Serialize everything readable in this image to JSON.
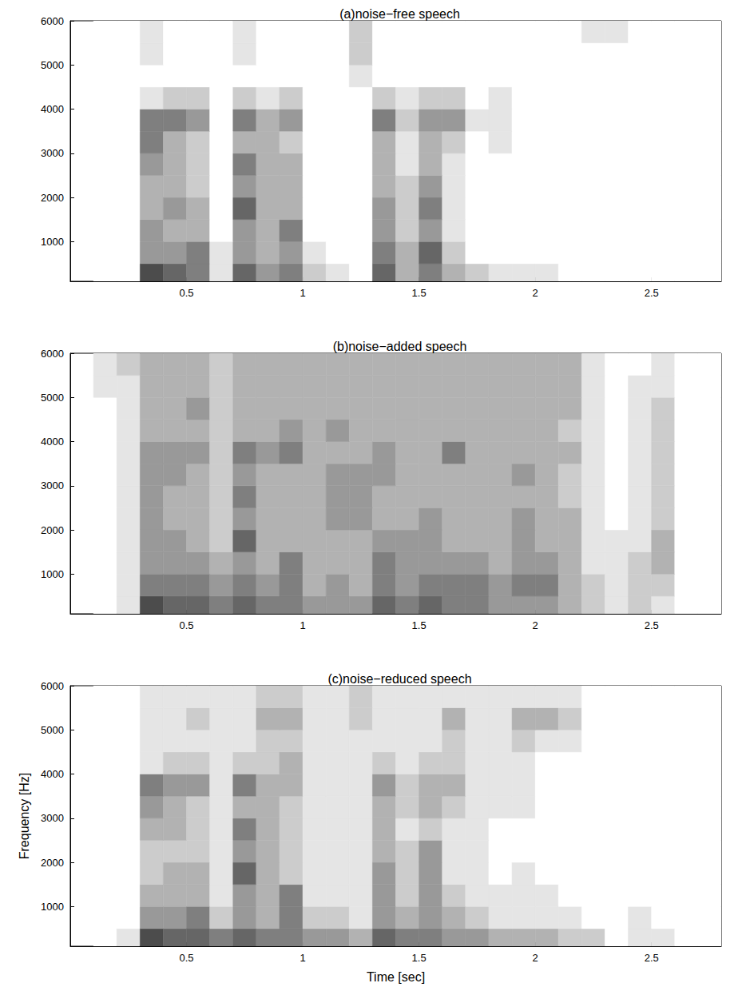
{
  "chart_data": [
    {
      "type": "heatmap",
      "title": "(a)noise−free speech",
      "xlim": [
        0,
        2.8
      ],
      "xticks": [
        0.5,
        1,
        1.5,
        2,
        2.5
      ],
      "ylim": [
        100,
        6000
      ],
      "yticks": [
        1000,
        2000,
        3000,
        4000,
        5000,
        6000
      ],
      "time_bins": [
        0.1,
        0.2,
        0.3,
        0.4,
        0.5,
        0.6,
        0.7,
        0.8,
        0.9,
        1.0,
        1.1,
        1.2,
        1.3,
        1.4,
        1.5,
        1.6,
        1.7,
        1.8,
        1.9,
        2.0,
        2.1,
        2.2,
        2.3,
        2.4,
        2.5,
        2.6,
        2.7,
        2.8
      ],
      "freq_bins": [
        100,
        500,
        1000,
        1500,
        2000,
        2500,
        3000,
        3500,
        4000,
        4500,
        5000,
        5500,
        6000
      ],
      "clim": [
        0,
        9
      ],
      "cells": [
        [
          0,
          0,
          7,
          6,
          5,
          1,
          6,
          4,
          5,
          2,
          1,
          0,
          6,
          3,
          5,
          3,
          2,
          1,
          1,
          1,
          0,
          0,
          0,
          0,
          0,
          0,
          0
        ],
        [
          0,
          0,
          4,
          4,
          5,
          1,
          4,
          3,
          4,
          1,
          0,
          0,
          5,
          3,
          6,
          2,
          0,
          0,
          0,
          0,
          0,
          0,
          0,
          0,
          0,
          0,
          0
        ],
        [
          0,
          0,
          4,
          3,
          3,
          0,
          4,
          3,
          5,
          0,
          0,
          0,
          4,
          2,
          4,
          1,
          0,
          0,
          0,
          0,
          0,
          0,
          0,
          0,
          0,
          0,
          0
        ],
        [
          0,
          0,
          3,
          4,
          3,
          0,
          6,
          3,
          3,
          0,
          0,
          0,
          4,
          2,
          5,
          1,
          0,
          0,
          0,
          0,
          0,
          0,
          0,
          0,
          0,
          0,
          0
        ],
        [
          0,
          0,
          3,
          3,
          2,
          0,
          4,
          3,
          3,
          0,
          0,
          0,
          3,
          2,
          4,
          1,
          0,
          0,
          0,
          0,
          0,
          0,
          0,
          0,
          0,
          0,
          0
        ],
        [
          0,
          0,
          4,
          3,
          2,
          0,
          5,
          3,
          3,
          0,
          0,
          0,
          3,
          1,
          3,
          1,
          0,
          0,
          0,
          0,
          0,
          0,
          0,
          0,
          0,
          0,
          0
        ],
        [
          0,
          0,
          5,
          3,
          2,
          0,
          3,
          3,
          2,
          0,
          0,
          0,
          3,
          1,
          3,
          2,
          0,
          1,
          0,
          0,
          0,
          0,
          0,
          0,
          0,
          0,
          0
        ],
        [
          0,
          0,
          5,
          5,
          4,
          0,
          5,
          3,
          4,
          0,
          0,
          0,
          5,
          2,
          4,
          4,
          1,
          1,
          0,
          0,
          0,
          0,
          0,
          0,
          0,
          0,
          0
        ],
        [
          0,
          0,
          1,
          2,
          2,
          0,
          2,
          1,
          2,
          0,
          0,
          0,
          2,
          1,
          2,
          2,
          0,
          1,
          0,
          0,
          0,
          0,
          0,
          0,
          0,
          0,
          0
        ],
        [
          0,
          0,
          0,
          0,
          0,
          0,
          0,
          0,
          0,
          0,
          0,
          1,
          0,
          0,
          0,
          0,
          0,
          0,
          0,
          0,
          0,
          0,
          0,
          0,
          0,
          0,
          0
        ],
        [
          0,
          0,
          1,
          0,
          0,
          0,
          1,
          0,
          0,
          0,
          0,
          2,
          0,
          0,
          0,
          0,
          0,
          0,
          0,
          0,
          0,
          0,
          0,
          0,
          0,
          0,
          0
        ],
        [
          0,
          0,
          1,
          0,
          0,
          0,
          1,
          0,
          0,
          0,
          0,
          2,
          0,
          0,
          0,
          0,
          0,
          0,
          0,
          0,
          0,
          1,
          1,
          0,
          0,
          0,
          0
        ]
      ]
    },
    {
      "type": "heatmap",
      "title": "(b)noise−added speech",
      "xlim": [
        0,
        2.8
      ],
      "xticks": [
        0.5,
        1,
        1.5,
        2,
        2.5
      ],
      "ylim": [
        100,
        6000
      ],
      "yticks": [
        1000,
        2000,
        3000,
        4000,
        5000,
        6000
      ],
      "time_bins": [
        0.1,
        0.2,
        0.3,
        0.4,
        0.5,
        0.6,
        0.7,
        0.8,
        0.9,
        1.0,
        1.1,
        1.2,
        1.3,
        1.4,
        1.5,
        1.6,
        1.7,
        1.8,
        1.9,
        2.0,
        2.1,
        2.2,
        2.3,
        2.4,
        2.5,
        2.6,
        2.7,
        2.8
      ],
      "freq_bins": [
        100,
        500,
        1000,
        1500,
        2000,
        2500,
        3000,
        3500,
        4000,
        4500,
        5000,
        5500,
        6000
      ],
      "clim": [
        0,
        9
      ],
      "cells": [
        [
          0,
          1,
          7,
          6,
          6,
          5,
          6,
          5,
          5,
          4,
          4,
          4,
          6,
          5,
          6,
          5,
          5,
          4,
          4,
          4,
          3,
          2,
          1,
          2,
          1,
          0,
          0
        ],
        [
          0,
          1,
          5,
          5,
          5,
          4,
          5,
          4,
          5,
          3,
          4,
          3,
          5,
          4,
          5,
          5,
          5,
          4,
          5,
          5,
          3,
          2,
          1,
          2,
          2,
          0,
          0
        ],
        [
          0,
          1,
          4,
          4,
          4,
          3,
          4,
          3,
          5,
          3,
          3,
          3,
          5,
          4,
          4,
          4,
          4,
          3,
          4,
          4,
          3,
          1,
          1,
          2,
          3,
          0,
          0
        ],
        [
          0,
          1,
          4,
          4,
          3,
          2,
          6,
          3,
          3,
          3,
          3,
          3,
          4,
          4,
          4,
          3,
          3,
          3,
          4,
          3,
          3,
          1,
          1,
          1,
          3,
          0,
          0
        ],
        [
          0,
          1,
          4,
          3,
          3,
          2,
          4,
          3,
          3,
          3,
          4,
          4,
          3,
          3,
          4,
          3,
          3,
          3,
          4,
          3,
          3,
          1,
          0,
          1,
          2,
          0,
          0
        ],
        [
          0,
          1,
          4,
          3,
          3,
          2,
          5,
          3,
          3,
          3,
          4,
          4,
          3,
          3,
          3,
          3,
          3,
          3,
          3,
          3,
          2,
          1,
          0,
          1,
          2,
          0,
          0
        ],
        [
          0,
          1,
          4,
          4,
          3,
          2,
          4,
          3,
          3,
          3,
          4,
          4,
          4,
          3,
          3,
          3,
          3,
          3,
          4,
          3,
          2,
          1,
          0,
          1,
          2,
          0,
          0
        ],
        [
          0,
          1,
          4,
          4,
          4,
          2,
          5,
          4,
          5,
          3,
          3,
          3,
          4,
          3,
          3,
          5,
          3,
          3,
          3,
          3,
          3,
          1,
          0,
          1,
          2,
          0,
          0
        ],
        [
          0,
          1,
          3,
          3,
          3,
          2,
          3,
          3,
          4,
          3,
          4,
          3,
          3,
          3,
          3,
          3,
          3,
          3,
          3,
          3,
          2,
          1,
          0,
          1,
          2,
          0,
          0
        ],
        [
          0,
          1,
          3,
          3,
          4,
          2,
          3,
          3,
          3,
          3,
          3,
          3,
          3,
          3,
          3,
          3,
          3,
          3,
          3,
          3,
          3,
          1,
          0,
          1,
          2,
          0,
          0
        ],
        [
          1,
          1,
          3,
          3,
          3,
          2,
          3,
          3,
          3,
          3,
          3,
          3,
          3,
          3,
          3,
          3,
          3,
          3,
          3,
          3,
          3,
          1,
          0,
          1,
          1,
          0,
          0
        ],
        [
          1,
          2,
          3,
          3,
          3,
          2,
          3,
          3,
          3,
          3,
          3,
          3,
          3,
          3,
          3,
          3,
          3,
          3,
          3,
          3,
          3,
          1,
          0,
          0,
          1,
          0,
          0
        ]
      ]
    },
    {
      "type": "heatmap",
      "title": "(c)noise−reduced speech",
      "xlabel": "Time [sec]",
      "ylabel": "Frequency [Hz]",
      "xlim": [
        0,
        2.8
      ],
      "xticks": [
        0.5,
        1,
        1.5,
        2,
        2.5
      ],
      "ylim": [
        100,
        6000
      ],
      "yticks": [
        1000,
        2000,
        3000,
        4000,
        5000,
        6000
      ],
      "time_bins": [
        0.1,
        0.2,
        0.3,
        0.4,
        0.5,
        0.6,
        0.7,
        0.8,
        0.9,
        1.0,
        1.1,
        1.2,
        1.3,
        1.4,
        1.5,
        1.6,
        1.7,
        1.8,
        1.9,
        2.0,
        2.1,
        2.2,
        2.3,
        2.4,
        2.5,
        2.6,
        2.7,
        2.8
      ],
      "freq_bins": [
        100,
        500,
        1000,
        1500,
        2000,
        2500,
        3000,
        3500,
        4000,
        4500,
        5000,
        5500,
        6000
      ],
      "clim": [
        0,
        9
      ],
      "cells": [
        [
          0,
          1,
          7,
          6,
          6,
          5,
          6,
          5,
          5,
          4,
          4,
          3,
          6,
          5,
          5,
          4,
          4,
          3,
          3,
          3,
          2,
          2,
          0,
          1,
          1,
          0,
          0
        ],
        [
          0,
          0,
          4,
          4,
          5,
          2,
          4,
          3,
          5,
          2,
          2,
          1,
          4,
          3,
          4,
          3,
          2,
          1,
          1,
          1,
          1,
          0,
          0,
          1,
          0,
          0,
          0
        ],
        [
          0,
          0,
          3,
          3,
          3,
          1,
          4,
          3,
          5,
          1,
          1,
          1,
          4,
          2,
          4,
          2,
          1,
          1,
          1,
          1,
          0,
          0,
          0,
          0,
          0,
          0,
          0
        ],
        [
          0,
          0,
          2,
          3,
          3,
          1,
          6,
          3,
          2,
          1,
          1,
          1,
          4,
          2,
          4,
          1,
          1,
          0,
          1,
          0,
          0,
          0,
          0,
          0,
          0,
          0,
          0
        ],
        [
          0,
          0,
          2,
          2,
          2,
          1,
          4,
          3,
          2,
          1,
          1,
          1,
          3,
          2,
          4,
          1,
          1,
          0,
          0,
          0,
          0,
          0,
          0,
          0,
          0,
          0,
          0
        ],
        [
          0,
          0,
          3,
          3,
          2,
          1,
          5,
          3,
          2,
          1,
          1,
          1,
          3,
          1,
          2,
          1,
          1,
          0,
          0,
          0,
          0,
          0,
          0,
          0,
          0,
          0,
          0
        ],
        [
          0,
          0,
          4,
          3,
          2,
          1,
          3,
          3,
          2,
          1,
          1,
          1,
          3,
          2,
          3,
          2,
          1,
          1,
          1,
          0,
          0,
          0,
          0,
          0,
          0,
          0,
          0
        ],
        [
          0,
          0,
          5,
          4,
          4,
          1,
          5,
          3,
          3,
          1,
          1,
          1,
          4,
          2,
          3,
          3,
          1,
          1,
          1,
          0,
          0,
          0,
          0,
          0,
          0,
          0,
          0
        ],
        [
          0,
          0,
          1,
          2,
          2,
          1,
          2,
          2,
          3,
          1,
          1,
          1,
          2,
          1,
          2,
          2,
          1,
          1,
          1,
          0,
          0,
          0,
          0,
          0,
          0,
          0,
          0
        ],
        [
          0,
          0,
          1,
          1,
          1,
          1,
          1,
          2,
          2,
          1,
          1,
          1,
          1,
          1,
          1,
          2,
          1,
          1,
          2,
          1,
          1,
          0,
          0,
          0,
          0,
          0,
          0
        ],
        [
          0,
          0,
          1,
          1,
          2,
          1,
          1,
          3,
          3,
          1,
          1,
          2,
          1,
          1,
          1,
          3,
          1,
          1,
          3,
          3,
          2,
          0,
          0,
          0,
          0,
          0,
          0
        ],
        [
          0,
          0,
          1,
          1,
          1,
          1,
          1,
          2,
          2,
          1,
          1,
          2,
          1,
          1,
          1,
          1,
          1,
          1,
          1,
          1,
          1,
          0,
          0,
          0,
          0,
          0,
          0
        ]
      ]
    }
  ]
}
